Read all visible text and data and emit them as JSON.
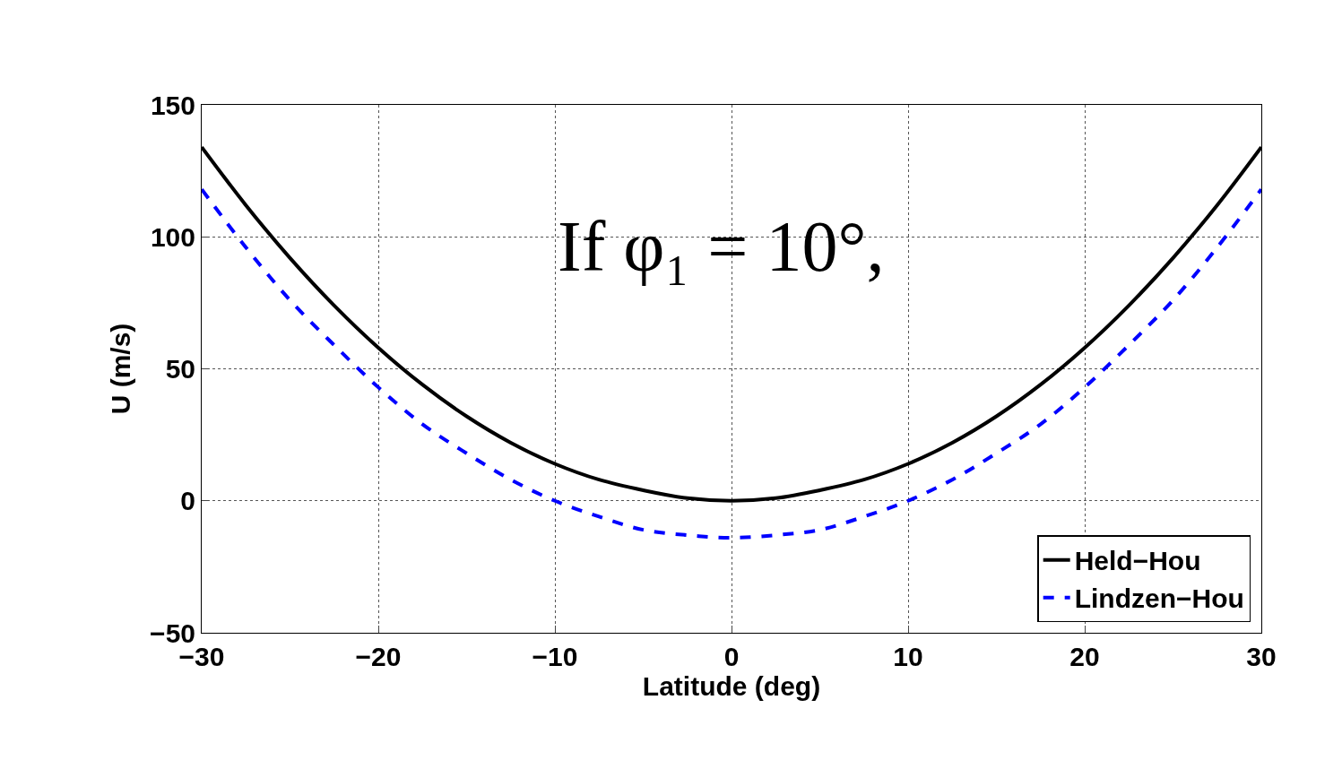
{
  "chart_data": {
    "type": "line",
    "xlabel": "Latitude (deg)",
    "ylabel": "U (m/s)",
    "x": [
      -30,
      -27.5,
      -25,
      -22.5,
      -20,
      -17.5,
      -15,
      -12.5,
      -10,
      -7.5,
      -5,
      -2.5,
      0,
      2.5,
      5,
      7.5,
      10,
      12.5,
      15,
      17.5,
      20,
      22.5,
      25,
      27.5,
      30
    ],
    "series": [
      {
        "name": "Held−Hou",
        "color": "#000000",
        "line_style": "solid",
        "values": [
          134,
          112,
          92,
          74,
          58,
          44,
          32,
          22,
          14,
          8,
          4,
          1,
          0,
          1,
          4,
          8,
          14,
          22,
          32,
          44,
          58,
          74,
          92,
          112,
          134
        ]
      },
      {
        "name": "Lindzen−Hou",
        "color": "#0000ff",
        "line_style": "dashed",
        "values": [
          118,
          96,
          76,
          59,
          43,
          29,
          18,
          8,
          0,
          -6,
          -11,
          -13,
          -14,
          -13,
          -11,
          -6,
          0,
          8,
          18,
          29,
          43,
          59,
          76,
          96,
          118
        ]
      }
    ],
    "annotations": [
      "If φ₁ = 10°,"
    ],
    "xlim": [
      -30,
      30
    ],
    "xticks": [
      -30,
      -20,
      -10,
      0,
      10,
      20,
      30
    ],
    "ylim": [
      -50,
      150
    ],
    "yticks": [
      -50,
      0,
      50,
      100,
      150
    ],
    "grid": true,
    "legend": "bottom right",
    "marker": "none"
  }
}
